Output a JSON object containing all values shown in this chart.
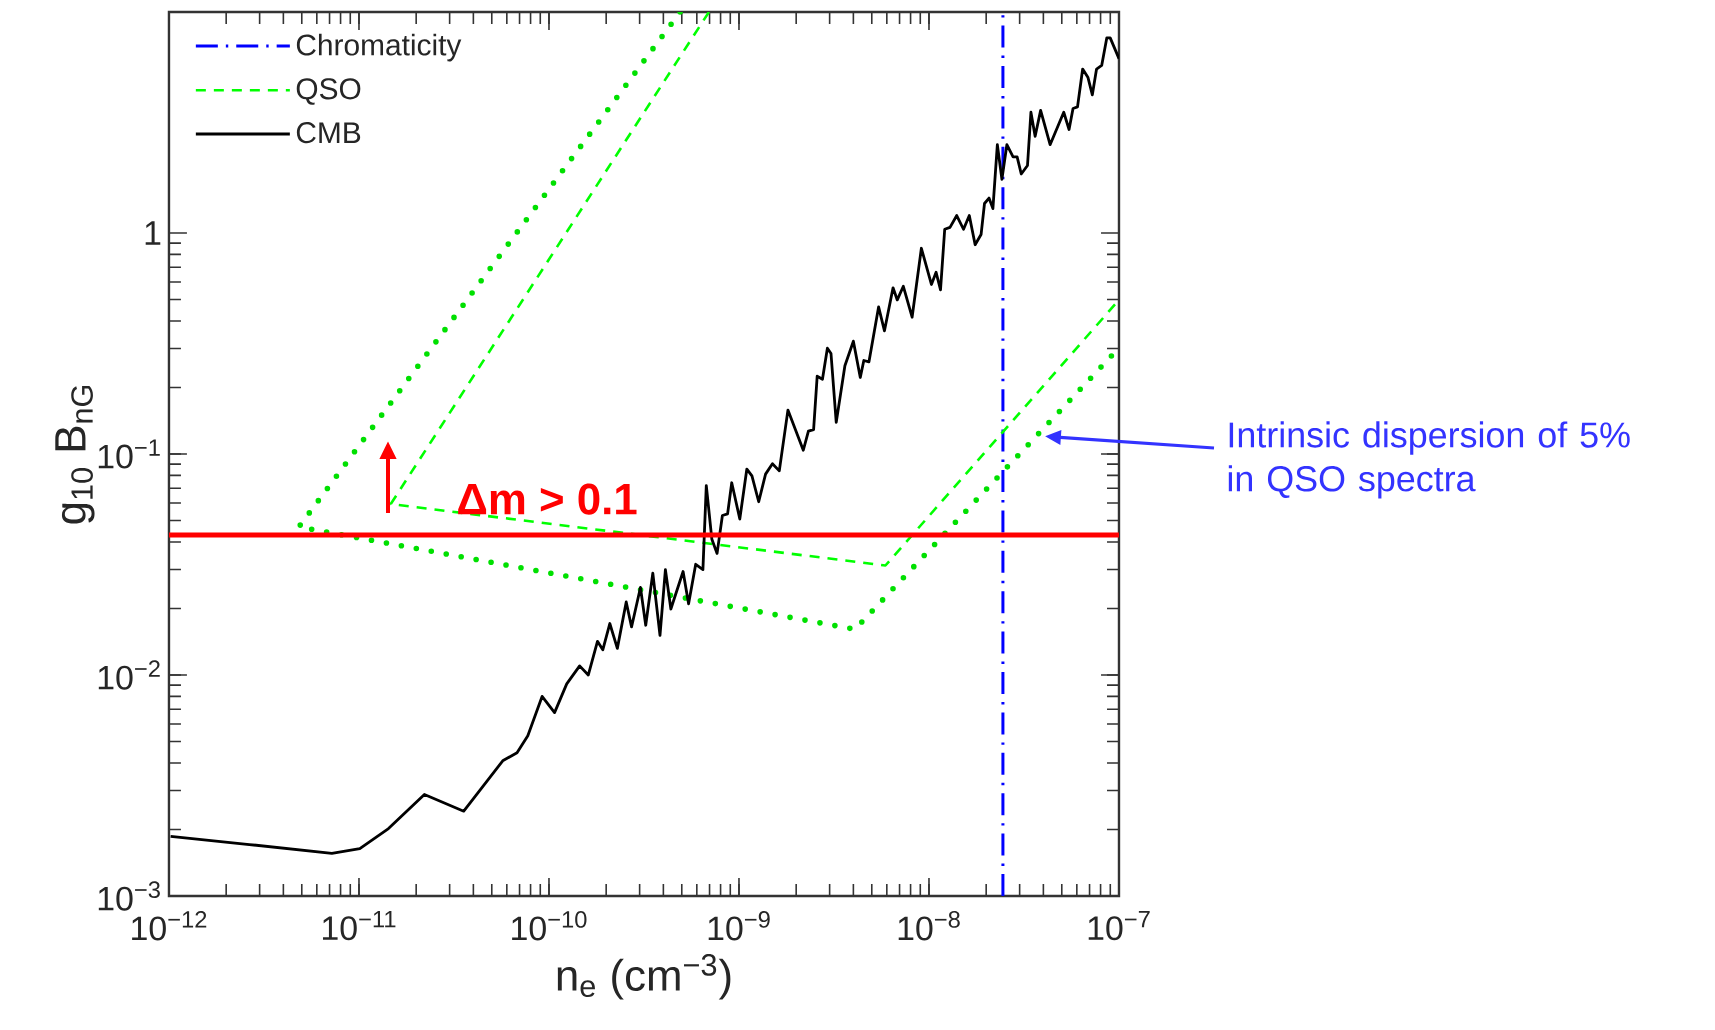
{
  "chart_data": {
    "type": "line",
    "xlabel": "n$_{e}$  (cm$^{−3}$)",
    "ylabel": "g$_{10}$ B$_{nG}$",
    "log": "xy",
    "xlim": [
      1e-12,
      1e-07
    ],
    "ylim": [
      0.001,
      10
    ],
    "xticks": [
      {
        "value": 1e-12,
        "label": "10$^{−12}$"
      },
      {
        "value": 1e-11,
        "label": "10$^{−11}$"
      },
      {
        "value": 1e-10,
        "label": "10$^{−10}$"
      },
      {
        "value": 1e-09,
        "label": "10$^{−9}$"
      },
      {
        "value": 1e-08,
        "label": "10$^{−8}$"
      },
      {
        "value": 1e-07,
        "label": "10$^{−7}$"
      }
    ],
    "yticks": [
      {
        "value": 0.001,
        "label": "10$^{−3}$"
      },
      {
        "value": 0.01,
        "label": "10$^{−2}$"
      },
      {
        "value": 0.1,
        "label": "10$^{−1}$"
      },
      1
    ],
    "legend": "top left",
    "marker": "none",
    "series": [
      {
        "name": "Chromaticity",
        "color": "#0000ff",
        "line_style": "dashdot",
        "x": [
          2.45e-08,
          2.45e-08
        ],
        "values": [
          0.001,
          10
        ]
      },
      {
        "name": "QSO",
        "color": "#00ff00",
        "line_style": "dashed",
        "x": [
          6.95e-10,
          1.47e-11,
          5.9e-09,
          1e-07
        ],
        "values": [
          10,
          0.0594,
          0.0313,
          0.498
        ]
      },
      {
        "color": "#00e000",
        "line_style": "dotted",
        "x": [
          4.9e-10,
          4.83e-12,
          4.08e-09,
          1e-07
        ],
        "values": [
          10,
          0.0468,
          0.0161,
          0.302
        ]
      },
      {
        "name": "CMB",
        "color": "#000000",
        "line_style": "solid",
        "x": [
          1.02e-12,
          2.65e-12,
          7.2e-12,
          1.01e-11,
          1.43e-11,
          2.21e-11,
          3.56e-11,
          5.71e-11,
          6.79e-11,
          7.74e-11,
          9.2e-11,
          1.07e-10,
          1.24e-10,
          1.45e-10,
          1.61e-10,
          1.8e-10,
          1.92e-10,
          2.09e-10,
          2.29e-10,
          2.55e-10,
          2.72e-10,
          3.03e-10,
          3.23e-10,
          3.52e-10,
          3.84e-10,
          4.1e-10,
          4.38e-10,
          5.08e-10,
          5.43e-10,
          5.92e-10,
          6.46e-10,
          6.73e-10,
          7.2e-10,
          7.67e-10,
          8.18e-10,
          8.71e-10,
          9.16e-10,
          1.01e-09,
          1.1e-09,
          1.17e-09,
          1.27e-09,
          1.38e-09,
          1.5e-09,
          1.63e-09,
          1.81e-09,
          2.18e-09,
          2.32e-09,
          2.47e-09,
          2.58e-09,
          2.75e-09,
          2.92e-09,
          3.05e-09,
          3.25e-09,
          3.61e-09,
          4e-09,
          4.35e-09,
          4.54e-09,
          4.83e-09,
          5.43e-09,
          5.83e-09,
          6.47e-09,
          6.81e-09,
          7.33e-09,
          8.15e-09,
          9.12e-09,
          1.03e-08,
          1.09e-08,
          1.15e-08,
          1.21e-08,
          1.29e-08,
          1.4e-08,
          1.52e-08,
          1.63e-08,
          1.75e-08,
          1.88e-08,
          1.96e-08,
          2.07e-08,
          2.17e-08,
          2.29e-08,
          2.42e-08,
          2.57e-08,
          2.77e-08,
          2.91e-08,
          3.06e-08,
          3.3e-08,
          3.44e-08,
          3.62e-08,
          3.87e-08,
          4.34e-08,
          5.12e-08,
          5.46e-08,
          5.73e-08,
          6.05e-08,
          6.44e-08,
          6.87e-08,
          7.24e-08,
          7.62e-08,
          8.11e-08,
          8.63e-08,
          8.99e-08,
          1e-07
        ],
        "values": [
          0.00186,
          0.00171,
          0.00156,
          0.00164,
          0.00202,
          0.00288,
          0.00242,
          0.00409,
          0.00445,
          0.00531,
          0.008,
          0.00676,
          0.00912,
          0.011,
          0.01,
          0.0142,
          0.013,
          0.0171,
          0.0132,
          0.0214,
          0.0165,
          0.0249,
          0.0168,
          0.0289,
          0.0151,
          0.03,
          0.0199,
          0.0294,
          0.021,
          0.0317,
          0.03,
          0.072,
          0.0411,
          0.0355,
          0.0527,
          0.0536,
          0.0741,
          0.0508,
          0.0855,
          0.0796,
          0.0608,
          0.0811,
          0.0904,
          0.0839,
          0.158,
          0.104,
          0.127,
          0.129,
          0.225,
          0.218,
          0.301,
          0.285,
          0.139,
          0.251,
          0.324,
          0.222,
          0.265,
          0.261,
          0.463,
          0.361,
          0.565,
          0.498,
          0.574,
          0.416,
          0.853,
          0.585,
          0.664,
          0.553,
          1.04,
          1.06,
          1.2,
          1.04,
          1.2,
          0.885,
          0.984,
          1.36,
          1.44,
          1.29,
          2.51,
          1.75,
          2.51,
          2.21,
          2.21,
          1.85,
          2.02,
          3.52,
          2.74,
          3.59,
          2.51,
          3.52,
          2.94,
          3.66,
          3.72,
          5.52,
          5.05,
          4.22,
          5.52,
          5.73,
          7.64,
          7.64,
          6.15
        ]
      }
    ],
    "ref_lines": [
      {
        "axis": "y",
        "value": 0.043,
        "label": "Δm > 0.1",
        "color": "#ff0000"
      }
    ],
    "annotations": [
      "Intrinsic dispersion of 5% in QSO spectra"
    ]
  }
}
